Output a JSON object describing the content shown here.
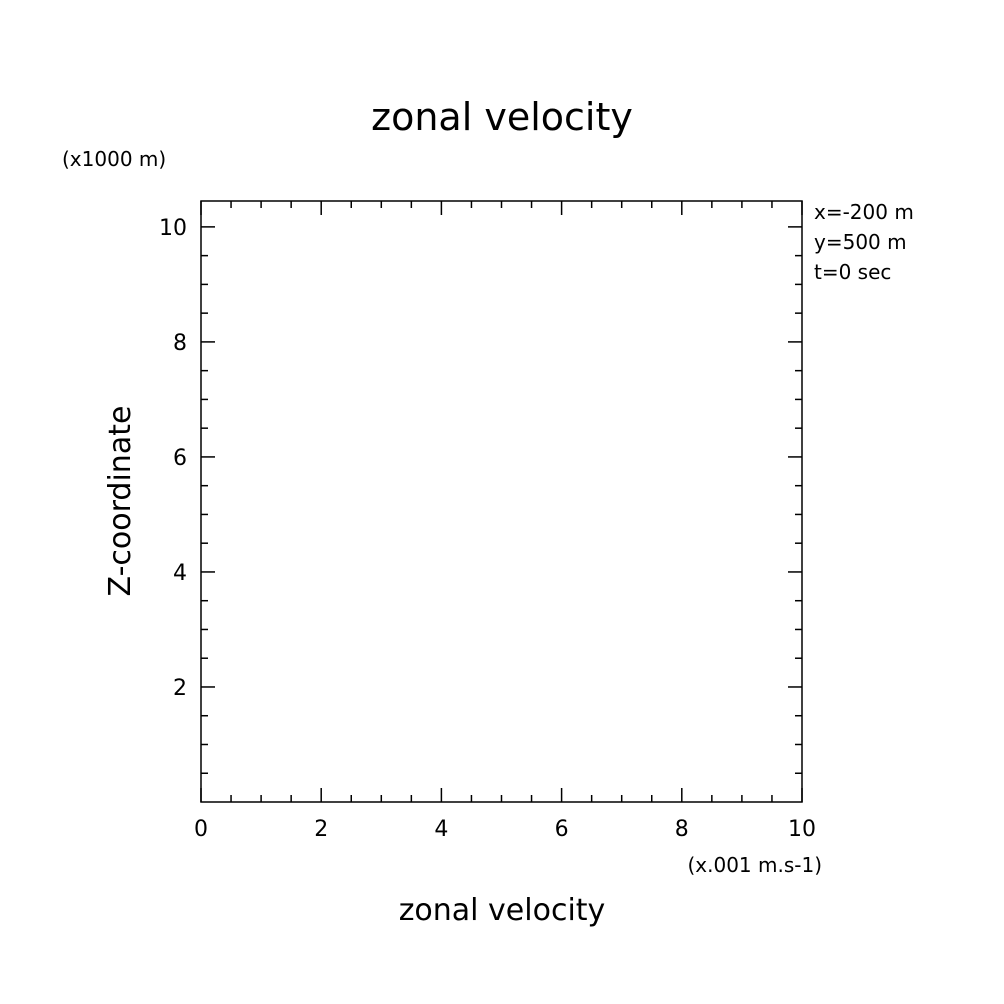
{
  "chart_data": {
    "type": "line",
    "title": "zonal velocity",
    "xlabel": "zonal velocity",
    "ylabel": "Z-coordinate",
    "x_unit": "(x.001 m.s-1)",
    "y_unit": "(x1000 m)",
    "xlim": [
      0,
      10
    ],
    "ylim": [
      0,
      10.45
    ],
    "x_ticks": [
      "0",
      "2",
      "4",
      "6",
      "8",
      "10"
    ],
    "y_ticks": [
      "2",
      "4",
      "6",
      "8",
      "10"
    ],
    "annotations": [
      "x=-200 m",
      "y=500 m",
      "t=0 sec"
    ],
    "series": [],
    "grid": false
  },
  "colors": {
    "axis": "#000000",
    "background": "#ffffff"
  }
}
